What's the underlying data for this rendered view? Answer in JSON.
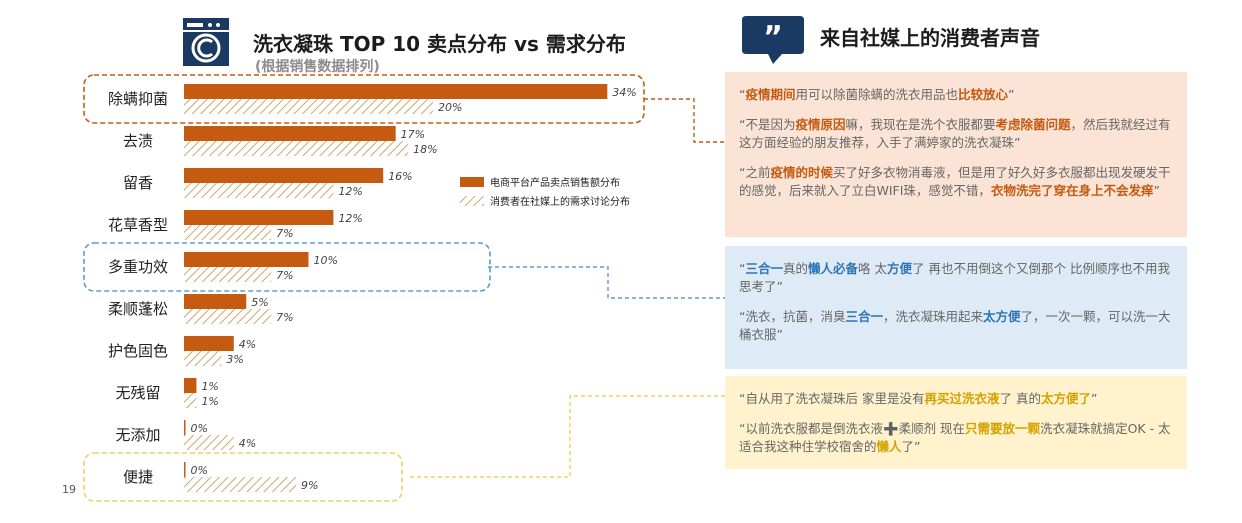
{
  "header": {
    "title": "洗衣凝珠 TOP 10 卖点分布 vs 需求分布",
    "subtitle": "(根据销售数据排列)"
  },
  "right_header": {
    "title": "来自社媒上的消费者声音"
  },
  "page_number": "19",
  "colors": {
    "sales": "#c55a11",
    "discussion_hatch": "#c9a96e",
    "orange_box": "#c55a11",
    "blue_box": "#5b9bd5",
    "yellow_box": "#f0d060",
    "logo": "#1b3a63"
  },
  "icons": {
    "logo": "washing-machine-icon",
    "quote": "quote-bubble-icon"
  },
  "chart_data": {
    "type": "bar",
    "orientation": "horizontal",
    "categories": [
      "除螨抑菌",
      "去渍",
      "留香",
      "花草香型",
      "多重功效",
      "柔顺蓬松",
      "护色固色",
      "无残留",
      "无添加",
      "便捷"
    ],
    "series": [
      {
        "name": "电商平台产品卖点销售额分布",
        "values": [
          34,
          17,
          16,
          12,
          10,
          5,
          4,
          1,
          0,
          0
        ],
        "labels": [
          "34%",
          "17%",
          "16%",
          "12%",
          "10%",
          "5%",
          "4%",
          "1%",
          "0%",
          "0%"
        ]
      },
      {
        "name": "消费者在社媒上的需求讨论分布",
        "values": [
          20,
          18,
          12,
          7,
          7,
          7,
          3,
          1,
          4,
          9
        ],
        "labels": [
          "20%",
          "18%",
          "12%",
          "7%",
          "7%",
          "7%",
          "3%",
          "1%",
          "4%",
          "9%"
        ]
      }
    ],
    "unit": "%",
    "legend_position": "right-middle",
    "highlighted": [
      {
        "category": "除螨抑菌",
        "style": "orange-dashed"
      },
      {
        "category": "多重功效",
        "style": "blue-dashed"
      },
      {
        "category": "便捷",
        "style": "yellow-dashed"
      }
    ]
  },
  "panels": {
    "orange": [
      [
        {
          "t": "“"
        },
        {
          "t": "疫情期间",
          "h": true
        },
        {
          "t": "用可以除菌除螨的洗衣用品也"
        },
        {
          "t": "比较放心",
          "h": true
        },
        {
          "t": "”"
        }
      ],
      [
        {
          "t": "“不是因为"
        },
        {
          "t": "疫情原因",
          "h": true
        },
        {
          "t": "嘛，我现在是洗个衣服都要"
        },
        {
          "t": "考虑除菌问题",
          "h": true
        },
        {
          "t": "，然后我就经过有这方面经验的朋友推荐，入手了满婷家的洗衣凝珠”"
        }
      ],
      [
        {
          "t": "“之前"
        },
        {
          "t": "疫情的时候",
          "h": true
        },
        {
          "t": "买了好多衣物消毒液，但是用了好久好多衣服都出现发硬发干的感觉，后来就入了立白WIFI珠，感觉不错，"
        },
        {
          "t": "衣物洗完了穿在身上不会发痒",
          "h": true
        },
        {
          "t": "”"
        }
      ]
    ],
    "blue": [
      [
        {
          "t": "“"
        },
        {
          "t": "三合一",
          "h": true
        },
        {
          "t": "真的"
        },
        {
          "t": "懒人必备",
          "h": true
        },
        {
          "t": "咯 太"
        },
        {
          "t": "方便",
          "h": true
        },
        {
          "t": "了 再也不用倒这个又倒那个 比例顺序也不用我思考了”"
        }
      ],
      [
        {
          "t": "“洗衣，抗菌，消臭"
        },
        {
          "t": "三合一",
          "h": true
        },
        {
          "t": "，洗衣凝珠用起来"
        },
        {
          "t": "太方便",
          "h": true
        },
        {
          "t": "了，一次一颗，可以洗一大桶衣服”"
        }
      ]
    ],
    "yellow": [
      [
        {
          "t": "“自从用了洗衣凝珠后 家里是没有"
        },
        {
          "t": "再买过洗衣液",
          "h": true
        },
        {
          "t": "了 真的"
        },
        {
          "t": "太方便了",
          "h": true
        },
        {
          "t": "”"
        }
      ],
      [
        {
          "t": "“以前洗衣服都是倒洗衣液"
        },
        {
          "t": "➕"
        },
        {
          "t": "柔顺剂 现在"
        },
        {
          "t": "只需要放一颗",
          "h": true
        },
        {
          "t": "洗衣凝珠就搞定OK - 太适合我这种住学校宿舍的"
        },
        {
          "t": "懒人",
          "h": true
        },
        {
          "t": "了”"
        }
      ]
    ]
  }
}
